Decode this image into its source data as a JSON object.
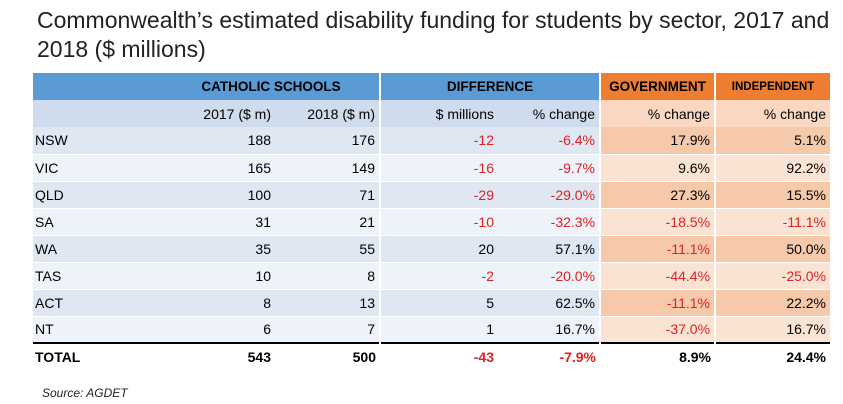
{
  "title": "Commonwealth’s estimated disability funding for students by sector, 2017 and 2018 ($ millions)",
  "headers": {
    "catholic": "CATHOLIC SCHOOLS",
    "difference": "DIFFERENCE",
    "government": "GOVERNMENT",
    "independent": "INDEPENDENT",
    "col_2017": "2017 ($ m)",
    "col_2018": "2018 ($ m)",
    "col_millions": "$ millions",
    "col_change": "% change",
    "col_gov_change": "% change",
    "col_ind_change": "% change"
  },
  "rows": [
    {
      "state": "NSW",
      "y2017": "188",
      "y2018": "176",
      "diff": "-12",
      "pct": "-6.4%",
      "gov": "17.9%",
      "ind": "5.1%"
    },
    {
      "state": "VIC",
      "y2017": "165",
      "y2018": "149",
      "diff": "-16",
      "pct": "-9.7%",
      "gov": "9.6%",
      "ind": "92.2%"
    },
    {
      "state": "QLD",
      "y2017": "100",
      "y2018": "71",
      "diff": "-29",
      "pct": "-29.0%",
      "gov": "27.3%",
      "ind": "15.5%"
    },
    {
      "state": "SA",
      "y2017": "31",
      "y2018": "21",
      "diff": "-10",
      "pct": "-32.3%",
      "gov": "-18.5%",
      "ind": "-11.1%"
    },
    {
      "state": "WA",
      "y2017": "35",
      "y2018": "55",
      "diff": "20",
      "pct": "57.1%",
      "gov": "-11.1%",
      "ind": "50.0%"
    },
    {
      "state": "TAS",
      "y2017": "10",
      "y2018": "8",
      "diff": "-2",
      "pct": "-20.0%",
      "gov": "-44.4%",
      "ind": "-25.0%"
    },
    {
      "state": "ACT",
      "y2017": "8",
      "y2018": "13",
      "diff": "5",
      "pct": "62.5%",
      "gov": "-11.1%",
      "ind": "22.2%"
    },
    {
      "state": "NT",
      "y2017": "6",
      "y2018": "7",
      "diff": "1",
      "pct": "16.7%",
      "gov": "-37.0%",
      "ind": "16.7%"
    }
  ],
  "total": {
    "state": "TOTAL",
    "y2017": "543",
    "y2018": "500",
    "diff": "-43",
    "pct": "-7.9%",
    "gov": "8.9%",
    "ind": "24.4%"
  },
  "source": "Source:  AGDET",
  "colors": {
    "header_blue": "#5b9bd5",
    "header_orange": "#ed7d31",
    "negative": "#e02020"
  }
}
